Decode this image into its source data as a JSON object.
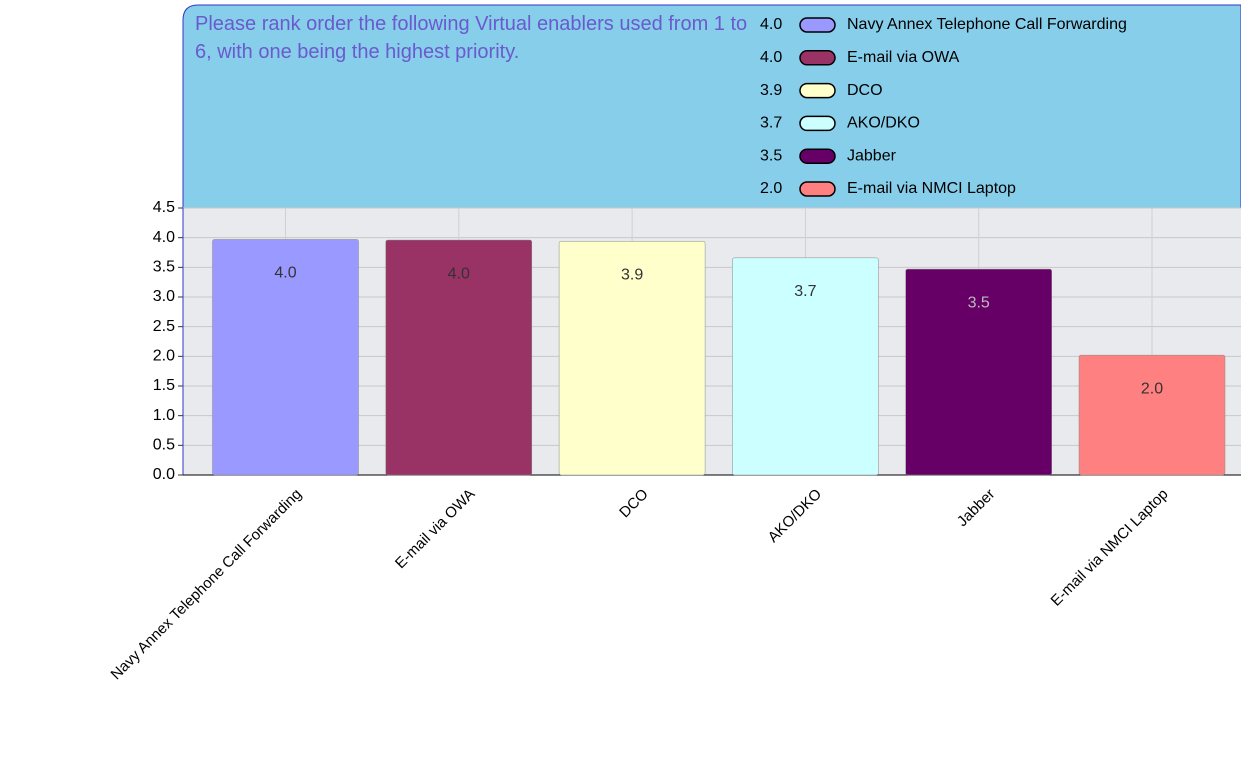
{
  "chart_data": {
    "type": "bar",
    "title": "Please rank order the following Virtual enablers used from 1 to 6, with one being the highest priority.",
    "categories": [
      "Navy Annex Telephone Call Forwarding",
      "E-mail via OWA",
      "DCO",
      "AKO/DKO",
      "Jabber",
      "E-mail via NMCI Laptop"
    ],
    "values": [
      3.97,
      3.96,
      3.94,
      3.66,
      3.47,
      2.02
    ],
    "value_labels": [
      "4.0",
      "4.0",
      "3.9",
      "3.7",
      "3.5",
      "2.0"
    ],
    "colors": [
      "#9999ff",
      "#993366",
      "#ffffcc",
      "#ccffff",
      "#660066",
      "#ff8080"
    ],
    "ylim": [
      0,
      4.5
    ],
    "yticks": [
      {
        "value": 0,
        "label": "0.0"
      },
      0.5,
      {
        "value": 1,
        "label": "1.0"
      },
      1.5,
      {
        "value": 2,
        "label": "2.0"
      },
      2.5,
      {
        "value": 3,
        "label": "3.0"
      },
      3.5,
      {
        "value": 4,
        "label": "4.0"
      },
      4.5
    ],
    "grid": true,
    "legend": "top-right"
  }
}
